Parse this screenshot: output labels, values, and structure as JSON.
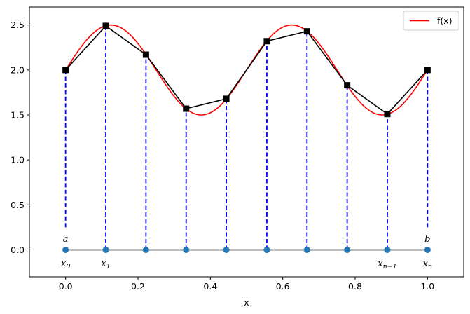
{
  "chart_data": {
    "type": "line",
    "title": "",
    "xlabel": "x",
    "ylabel": "",
    "xlim": [
      -0.1,
      1.1
    ],
    "ylim": [
      -0.3,
      2.7
    ],
    "grid": false,
    "legend_position": "upper right",
    "x_ticks": [
      0.0,
      0.2,
      0.4,
      0.6,
      0.8,
      1.0
    ],
    "x_tick_labels": [
      "0.0",
      "0.2",
      "0.4",
      "0.6",
      "0.8",
      "1.0"
    ],
    "y_ticks": [
      0.0,
      0.5,
      1.0,
      1.5,
      2.0,
      2.5
    ],
    "y_tick_labels": [
      "0.0",
      "0.5",
      "1.0",
      "1.5",
      "2.0",
      "2.5"
    ],
    "series": [
      {
        "name": "f(x)",
        "kind": "curve",
        "color": "#ff0000",
        "expression": "2 + 0.5*sin(4*pi*x)",
        "in_legend": true
      },
      {
        "name": "piecewise linear interpolant",
        "kind": "line-with-square-markers",
        "color": "#000000",
        "x": [
          0.0,
          0.111,
          0.222,
          0.333,
          0.444,
          0.556,
          0.667,
          0.778,
          0.889,
          1.0
        ],
        "y": [
          2.0,
          2.49,
          2.17,
          1.57,
          1.68,
          2.32,
          2.43,
          1.83,
          1.51,
          2.0
        ],
        "in_legend": false
      },
      {
        "name": "nodes",
        "kind": "line-with-circle-markers",
        "color": "#1f77b4",
        "line_color": "#000000",
        "x": [
          0.0,
          0.111,
          0.222,
          0.333,
          0.444,
          0.556,
          0.667,
          0.778,
          0.889,
          1.0
        ],
        "y": [
          0,
          0,
          0,
          0,
          0,
          0,
          0,
          0,
          0,
          0
        ],
        "in_legend": false
      },
      {
        "name": "vertical guides",
        "kind": "dashed-vertical",
        "color": "#0000ff",
        "in_legend": false
      }
    ],
    "annotations": [
      {
        "text": "a",
        "x": 0.0,
        "y": 0.12
      },
      {
        "text": "b",
        "x": 1.0,
        "y": 0.12
      },
      {
        "text": "x0",
        "x": 0.0,
        "y": -0.15
      },
      {
        "text": "x1",
        "x": 0.111,
        "y": -0.15
      },
      {
        "text": "xn-1",
        "x": 0.889,
        "y": -0.15
      },
      {
        "text": "xn",
        "x": 1.0,
        "y": -0.15
      }
    ],
    "legend": [
      "f(x)"
    ]
  },
  "labels": {
    "xlabel": "x",
    "legend_fx": "f(x)",
    "a": "a",
    "b": "b"
  }
}
